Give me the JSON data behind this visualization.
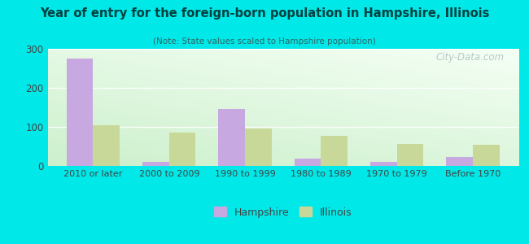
{
  "title": "Year of entry for the foreign-born population in Hampshire, Illinois",
  "subtitle": "(Note: State values scaled to Hampshire population)",
  "categories": [
    "2010 or later",
    "2000 to 2009",
    "1990 to 1999",
    "1980 to 1989",
    "1970 to 1979",
    "Before 1970"
  ],
  "hampshire_values": [
    275,
    10,
    145,
    18,
    10,
    22
  ],
  "illinois_values": [
    105,
    85,
    95,
    78,
    57,
    55
  ],
  "hampshire_color": "#c8a8e0",
  "illinois_color": "#c8d898",
  "background_outer": "#00e8e8",
  "ylim": [
    0,
    300
  ],
  "yticks": [
    0,
    100,
    200,
    300
  ],
  "bar_width": 0.35,
  "watermark": "City-Data.com",
  "legend_labels": [
    "Hampshire",
    "Illinois"
  ],
  "title_color": "#004040",
  "subtitle_color": "#336666",
  "tick_color": "#444444"
}
